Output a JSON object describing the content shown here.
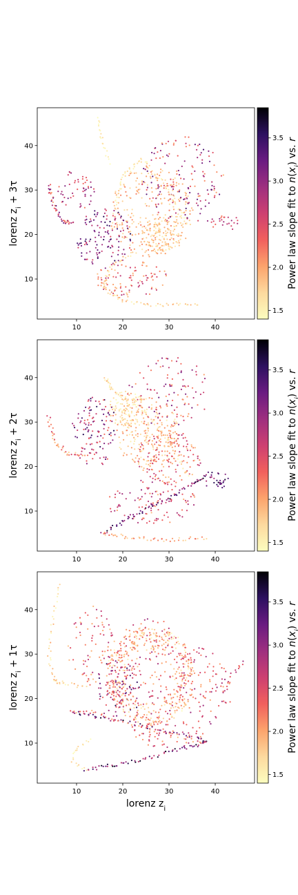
{
  "chart_data": [
    {
      "type": "scatter",
      "panel": "top",
      "xlabel": "",
      "ylabel": "lorenz z_i + 3τ",
      "ylabel_parts": {
        "base": "lorenz z",
        "sub": "i",
        "suffix": " + 3τ"
      },
      "xlim": [
        1.5,
        48.5
      ],
      "ylim": [
        1.0,
        48.5
      ],
      "xticks": [
        10,
        20,
        30,
        40
      ],
      "yticks": [
        10,
        20,
        30,
        40
      ],
      "colorbar_label": "Power law slope fit to n(x_i) vs. r",
      "colorbar_range": [
        1.4,
        3.85
      ],
      "colorbar_ticks": [
        "1.5",
        "2.0",
        "2.5",
        "3.0",
        "3.5"
      ],
      "colormap": "magma_r",
      "grid": false,
      "seed": 3,
      "clusters": [
        {
          "cx": 26,
          "cy": 25,
          "rx": 9,
          "ry": 10,
          "n": 260,
          "v": [
            1.6,
            2.2
          ]
        },
        {
          "cx": 29,
          "cy": 20,
          "rx": 5,
          "ry": 4,
          "n": 120,
          "v": [
            1.5,
            2.0
          ]
        },
        {
          "cx": 33,
          "cy": 32,
          "rx": 9,
          "ry": 10,
          "n": 160,
          "v": [
            1.9,
            3.4
          ]
        },
        {
          "cx": 16,
          "cy": 19,
          "rx": 6,
          "ry": 7,
          "n": 130,
          "v": [
            2.4,
            3.6
          ]
        },
        {
          "cx": 10,
          "cy": 30,
          "rx": 4,
          "ry": 5,
          "n": 50,
          "v": [
            2.2,
            3.2
          ]
        },
        {
          "cx": 22,
          "cy": 10,
          "rx": 8,
          "ry": 4,
          "n": 90,
          "v": [
            1.8,
            2.8
          ]
        },
        {
          "cx": 42,
          "cy": 23,
          "rx": 4,
          "ry": 2,
          "n": 25,
          "v": [
            2.2,
            3.2
          ]
        }
      ],
      "curves": [
        {
          "pts": [
            [
              4,
              31
            ],
            [
              5,
              27
            ],
            [
              7,
              23
            ],
            [
              9,
              22.5
            ]
          ],
          "v": [
            2.0,
            3.4
          ],
          "n": 45
        },
        {
          "pts": [
            [
              36.5,
              4.5
            ],
            [
              28,
              4
            ],
            [
              20,
              5
            ],
            [
              16,
              8
            ],
            [
              17,
              12
            ],
            [
              22,
              16
            ]
          ],
          "v": [
            1.4,
            2.0
          ],
          "n": 80
        },
        {
          "pts": [
            [
              14.5,
              46
            ],
            [
              15,
              43
            ],
            [
              16,
              40
            ],
            [
              17,
              36
            ]
          ],
          "v": [
            1.4,
            1.7
          ],
          "n": 20
        },
        {
          "pts": [
            [
              18,
              25
            ],
            [
              20,
              33
            ],
            [
              24,
              37
            ],
            [
              30,
              30
            ],
            [
              34,
              22
            ]
          ],
          "v": [
            1.4,
            1.8
          ],
          "n": 70
        }
      ]
    },
    {
      "type": "scatter",
      "panel": "middle",
      "xlabel": "",
      "ylabel": "lorenz z_i + 2τ",
      "ylabel_parts": {
        "base": "lorenz z",
        "sub": "i",
        "suffix": " + 2τ"
      },
      "xlim": [
        1.5,
        48.5
      ],
      "ylim": [
        1.0,
        48.5
      ],
      "xticks": [
        10,
        20,
        30,
        40
      ],
      "yticks": [
        10,
        20,
        30,
        40
      ],
      "colorbar_label": "Power law slope fit to n(x_i) vs. r",
      "colorbar_range": [
        1.4,
        3.85
      ],
      "colorbar_ticks": [
        "1.5",
        "2.0",
        "2.5",
        "3.0",
        "3.5"
      ],
      "colormap": "magma_r",
      "grid": false,
      "seed": 7,
      "clusters": [
        {
          "cx": 25,
          "cy": 28,
          "rx": 7,
          "ry": 8,
          "n": 220,
          "v": [
            1.5,
            2.2
          ]
        },
        {
          "cx": 21,
          "cy": 33,
          "rx": 4,
          "ry": 4,
          "n": 90,
          "v": [
            1.4,
            1.9
          ]
        },
        {
          "cx": 30,
          "cy": 22,
          "rx": 7,
          "ry": 6,
          "n": 150,
          "v": [
            1.8,
            2.8
          ]
        },
        {
          "cx": 14,
          "cy": 28,
          "rx": 5,
          "ry": 8,
          "n": 120,
          "v": [
            2.2,
            3.6
          ]
        },
        {
          "cx": 30,
          "cy": 37,
          "rx": 9,
          "ry": 8,
          "n": 110,
          "v": [
            2.0,
            3.2
          ]
        },
        {
          "cx": 26,
          "cy": 12,
          "rx": 10,
          "ry": 5,
          "n": 110,
          "v": [
            1.8,
            3.0
          ]
        },
        {
          "cx": 40,
          "cy": 17,
          "rx": 3,
          "ry": 2,
          "n": 30,
          "v": [
            2.8,
            3.7
          ]
        }
      ],
      "curves": [
        {
          "pts": [
            [
              4,
              31
            ],
            [
              5,
              26
            ],
            [
              8,
              23
            ],
            [
              12,
              22.5
            ]
          ],
          "v": [
            1.6,
            2.6
          ],
          "n": 40
        },
        {
          "pts": [
            [
              15.5,
              5
            ],
            [
              20,
              7.5
            ],
            [
              25,
              10.5
            ],
            [
              30,
              13
            ],
            [
              35,
              16
            ],
            [
              38,
              18
            ]
          ],
          "v": [
            2.6,
            3.8
          ],
          "n": 70
        },
        {
          "pts": [
            [
              15.5,
              5
            ],
            [
              22,
              4
            ],
            [
              30,
              3.5
            ],
            [
              38,
              4
            ]
          ],
          "v": [
            1.6,
            2.3
          ],
          "n": 45
        },
        {
          "pts": [
            [
              16,
              40
            ],
            [
              18,
              37
            ],
            [
              24,
              33
            ],
            [
              30,
              26
            ],
            [
              34,
              18
            ]
          ],
          "v": [
            1.4,
            2.0
          ],
          "n": 60
        }
      ]
    },
    {
      "type": "scatter",
      "panel": "bottom",
      "xlabel": "lorenz z_i",
      "xlabel_parts": {
        "base": "lorenz z",
        "sub": "i",
        "suffix": ""
      },
      "ylabel": "lorenz z_i + 1τ",
      "ylabel_parts": {
        "base": "lorenz z",
        "sub": "i",
        "suffix": " + 1τ"
      },
      "xlim": [
        1.5,
        48.5
      ],
      "ylim": [
        1.0,
        48.5
      ],
      "xticks": [
        10,
        20,
        30,
        40
      ],
      "yticks": [
        10,
        20,
        30,
        40
      ],
      "colorbar_label": "Power law slope fit to n(x_i) vs. r",
      "colorbar_range": [
        1.4,
        3.85
      ],
      "colorbar_ticks": [
        "1.5",
        "2.0",
        "2.5",
        "3.0",
        "3.5"
      ],
      "colormap": "magma_r",
      "grid": false,
      "seed": 11,
      "ring": {
        "cx": 26,
        "cy": 25,
        "rx": 6,
        "ry": 7,
        "hole": 0.45,
        "n": 380,
        "v": [
          1.4,
          2.4
        ]
      },
      "clusters": [
        {
          "cx": 26,
          "cy": 26,
          "rx": 10,
          "ry": 12,
          "n": 200,
          "v": [
            1.8,
            3.0
          ]
        },
        {
          "cx": 19,
          "cy": 22,
          "rx": 5,
          "ry": 7,
          "n": 90,
          "v": [
            2.3,
            3.6
          ]
        },
        {
          "cx": 13,
          "cy": 32,
          "rx": 5,
          "ry": 9,
          "n": 80,
          "v": [
            1.8,
            2.8
          ]
        },
        {
          "cx": 38,
          "cy": 23,
          "rx": 6,
          "ry": 9,
          "n": 80,
          "v": [
            2.0,
            3.0
          ]
        },
        {
          "cx": 30,
          "cy": 12,
          "rx": 8,
          "ry": 3,
          "n": 60,
          "v": [
            2.0,
            2.8
          ]
        }
      ],
      "curves": [
        {
          "pts": [
            [
              6,
              46
            ],
            [
              5,
              38
            ],
            [
              4,
              30
            ],
            [
              5,
              24
            ],
            [
              7,
              23.5
            ],
            [
              12,
              22.5
            ]
          ],
          "v": [
            1.4,
            2.0
          ],
          "n": 50
        },
        {
          "pts": [
            [
              12,
              4
            ],
            [
              18,
              5
            ],
            [
              25,
              6.5
            ],
            [
              32,
              8.5
            ],
            [
              38,
              10
            ]
          ],
          "v": [
            2.6,
            3.8
          ],
          "n": 60
        },
        {
          "pts": [
            [
              12,
              4
            ],
            [
              9,
              6
            ],
            [
              10,
              9
            ],
            [
              13,
              11
            ]
          ],
          "v": [
            1.4,
            1.8
          ],
          "n": 20
        },
        {
          "pts": [
            [
              9,
              17
            ],
            [
              14,
              16
            ],
            [
              20,
              15
            ],
            [
              28,
              13
            ],
            [
              36,
              11
            ],
            [
              38,
              10
            ]
          ],
          "v": [
            2.5,
            3.8
          ],
          "n": 60
        },
        {
          "pts": [
            [
              38,
              10
            ],
            [
              30,
              12
            ],
            [
              22,
              14
            ],
            [
              14,
              17
            ],
            [
              9,
              17
            ]
          ],
          "v": [
            1.8,
            2.6
          ],
          "n": 40
        },
        {
          "pts": [
            [
              46,
              28
            ],
            [
              44,
              26
            ],
            [
              40,
              22
            ],
            [
              35,
              20
            ]
          ],
          "v": [
            2.0,
            3.0
          ],
          "n": 20
        }
      ]
    }
  ]
}
